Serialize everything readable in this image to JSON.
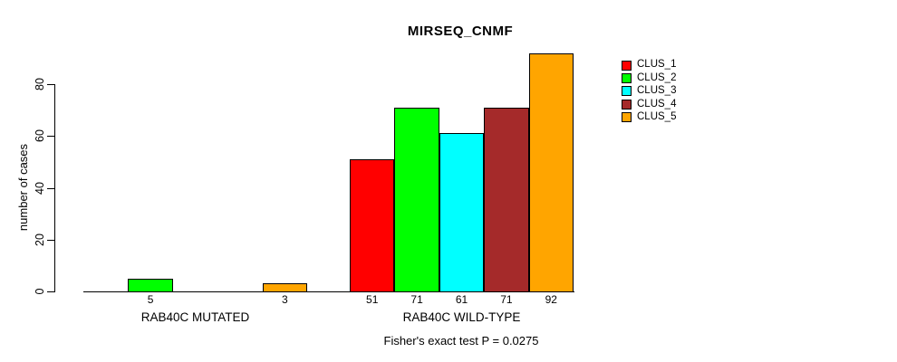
{
  "chart_data": {
    "type": "bar",
    "title": "MIRSEQ_CNMF",
    "ylabel": "number of cases",
    "xlabel": "",
    "yticks": [
      0,
      20,
      40,
      60,
      80
    ],
    "ylim": [
      0,
      92
    ],
    "grid": false,
    "legend_position": "right-inside",
    "categories": [
      "RAB40C MUTATED",
      "RAB40C WILD-TYPE"
    ],
    "series": [
      {
        "name": "CLUS_1",
        "color": "#FF0000",
        "values": [
          0,
          51
        ]
      },
      {
        "name": "CLUS_2",
        "color": "#00FF00",
        "values": [
          5,
          71
        ]
      },
      {
        "name": "CLUS_3",
        "color": "#00FFFF",
        "values": [
          0,
          61
        ]
      },
      {
        "name": "CLUS_4",
        "color": "#A52A2A",
        "values": [
          0,
          71
        ]
      },
      {
        "name": "CLUS_5",
        "color": "#FFA500",
        "values": [
          3,
          92
        ]
      }
    ],
    "bar_value_labels_shown_when": "value > 0",
    "annotation": "Fisher's exact test P = 0.0275",
    "axis_color": "#000000",
    "text_color": "#000000"
  }
}
